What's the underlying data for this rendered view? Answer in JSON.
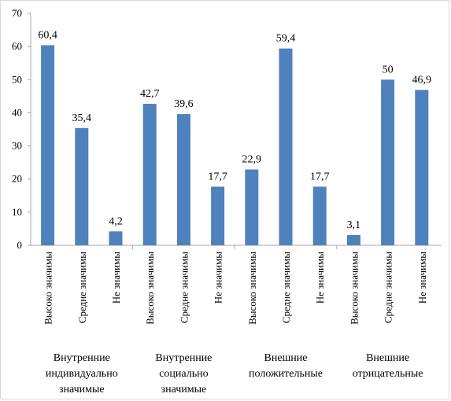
{
  "chart_data": {
    "type": "bar",
    "ylim": [
      0,
      70
    ],
    "yticks": [
      0,
      10,
      20,
      30,
      40,
      50,
      60,
      70
    ],
    "grid": false,
    "bar_color": "#4F81BD",
    "axis_color": "#A6A6A6",
    "groups": [
      {
        "label_lines": [
          "Внутренние",
          "индивидуально",
          "значимые"
        ],
        "categories": [
          "Высоко значимы",
          "Средне значимы",
          "Не значимы"
        ],
        "values": [
          60.4,
          35.4,
          4.2
        ],
        "value_labels": [
          "60,4",
          "35,4",
          "4,2"
        ]
      },
      {
        "label_lines": [
          "Внутренние",
          "социально",
          "значимые"
        ],
        "categories": [
          "Высоко значимы",
          "Средне значимы",
          "Не значимы"
        ],
        "values": [
          42.7,
          39.6,
          17.7
        ],
        "value_labels": [
          "42,7",
          "39,6",
          "17,7"
        ]
      },
      {
        "label_lines": [
          "Внешние",
          "положительные"
        ],
        "categories": [
          "Высоко значимы",
          "Средне значимы",
          "Не значимы"
        ],
        "values": [
          22.9,
          59.4,
          17.7
        ],
        "value_labels": [
          "22,9",
          "59,4",
          "17,7"
        ]
      },
      {
        "label_lines": [
          "Внешние",
          "отрицательные"
        ],
        "categories": [
          "Высоко значимы",
          "Средне значимы",
          "Не значимы"
        ],
        "values": [
          3.1,
          50,
          46.9
        ],
        "value_labels": [
          "3,1",
          "50",
          "46,9"
        ]
      }
    ]
  }
}
